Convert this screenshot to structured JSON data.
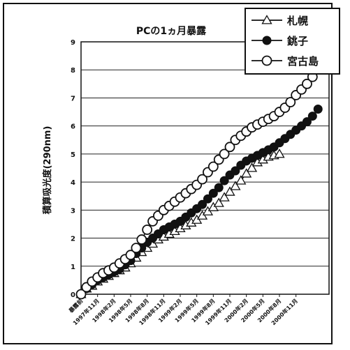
{
  "chart_data": {
    "type": "line",
    "title": "PCの1ヵ月暴露",
    "xlabel": "",
    "ylabel": "積算吸光度(290nm)",
    "ylim": [
      0,
      9
    ],
    "yticks": [
      "0",
      "1",
      "2",
      "3",
      "4",
      "5",
      "6",
      "7",
      "8",
      "9"
    ],
    "grid": "horizontal",
    "legend_position": "top-right",
    "x_tick_labels": [
      "暴露前",
      "1997年11月",
      "1998年2月",
      "1998年5月",
      "1998年8月",
      "1998年11月",
      "1999年2月",
      "1999年5月",
      "1999年8月",
      "1999年11月",
      "2000年2月",
      "2000年5月",
      "2000年8月",
      "2000年11月"
    ],
    "x_points_per_tick": 3,
    "series": [
      {
        "name": "札幌",
        "marker": "open-triangle",
        "values": [
          0,
          0.2,
          0.3,
          0.45,
          0.55,
          0.65,
          0.75,
          0.85,
          0.95,
          1.1,
          1.3,
          1.5,
          1.65,
          1.8,
          1.95,
          2.05,
          2.15,
          2.25,
          2.35,
          2.45,
          2.55,
          2.65,
          2.8,
          2.95,
          3.1,
          3.25,
          3.45,
          3.65,
          3.85,
          4.05,
          4.3,
          4.5,
          4.7,
          4.8,
          4.9,
          4.95,
          5.0
        ]
      },
      {
        "name": "銚子",
        "marker": "filled-circle",
        "values": [
          0,
          0.2,
          0.35,
          0.5,
          0.6,
          0.7,
          0.8,
          0.9,
          1.05,
          1.2,
          1.45,
          1.65,
          1.85,
          2.0,
          2.15,
          2.3,
          2.4,
          2.5,
          2.6,
          2.75,
          2.9,
          3.05,
          3.2,
          3.4,
          3.6,
          3.8,
          4.05,
          4.25,
          4.4,
          4.6,
          4.75,
          4.85,
          4.95,
          5.05,
          5.15,
          5.25,
          5.4,
          5.55,
          5.7,
          5.85,
          6.0,
          6.15,
          6.35,
          6.6
        ]
      },
      {
        "name": "宮古島",
        "marker": "open-circle",
        "values": [
          0,
          0.25,
          0.45,
          0.6,
          0.75,
          0.85,
          0.95,
          1.1,
          1.25,
          1.4,
          1.65,
          1.95,
          2.3,
          2.6,
          2.8,
          3.0,
          3.15,
          3.3,
          3.45,
          3.6,
          3.75,
          3.9,
          4.1,
          4.35,
          4.55,
          4.8,
          5.0,
          5.25,
          5.5,
          5.65,
          5.8,
          5.95,
          6.05,
          6.15,
          6.25,
          6.35,
          6.5,
          6.65,
          6.85,
          7.1,
          7.3,
          7.5,
          7.75
        ]
      }
    ]
  }
}
